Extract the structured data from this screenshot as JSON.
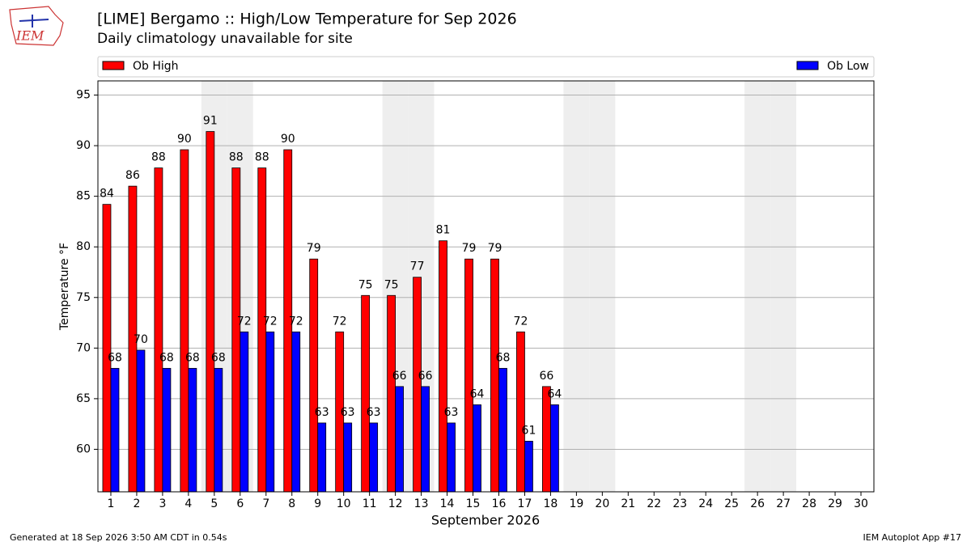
{
  "logo_text": "IEM",
  "footer_left": "Generated at 18 Sep 2026 3:50 AM CDT in 0.54s",
  "footer_right": "IEM Autoplot App #17",
  "chart_data": {
    "type": "bar",
    "title": "[LIME] Bergamo :: High/Low Temperature for Sep 2026",
    "subtitle": "Daily climatology unavailable for site",
    "x_label": "September 2026",
    "y_label": "Temperature °F",
    "categories": [
      "1",
      "2",
      "3",
      "4",
      "5",
      "6",
      "7",
      "8",
      "9",
      "10",
      "11",
      "12",
      "13",
      "14",
      "15",
      "16",
      "17",
      "18",
      "19",
      "20",
      "21",
      "22",
      "23",
      "24",
      "25",
      "26",
      "27",
      "28",
      "29",
      "30"
    ],
    "weekend_days": [
      5,
      6,
      12,
      13,
      19,
      20,
      26,
      27
    ],
    "series": [
      {
        "name": "Ob High",
        "color": "#ff0000",
        "values": [
          84.2,
          86,
          87.8,
          89.6,
          91.4,
          87.8,
          87.8,
          89.6,
          78.8,
          71.6,
          75.2,
          75.2,
          77,
          80.6,
          78.8,
          78.8,
          71.6,
          66.2,
          null,
          null,
          null,
          null,
          null,
          null,
          null,
          null,
          null,
          null,
          null,
          null
        ],
        "value_labels": [
          "84",
          "86",
          "88",
          "90",
          "91",
          "88",
          "88",
          "90",
          "79",
          "72",
          "75",
          "75",
          "77",
          "81",
          "79",
          "79",
          "72",
          "66",
          null,
          null,
          null,
          null,
          null,
          null,
          null,
          null,
          null,
          null,
          null,
          null
        ]
      },
      {
        "name": "Ob Low",
        "color": "#0000ff",
        "values": [
          68,
          69.8,
          68,
          68,
          68,
          71.6,
          71.6,
          71.6,
          62.6,
          62.6,
          62.6,
          66.2,
          66.2,
          62.6,
          64.4,
          68,
          60.8,
          64.4,
          null,
          null,
          null,
          null,
          null,
          null,
          null,
          null,
          null,
          null,
          null,
          null
        ],
        "value_labels": [
          "68",
          "70",
          "68",
          "68",
          "68",
          "72",
          "72",
          "72",
          "63",
          "63",
          "63",
          "66",
          "66",
          "63",
          "64",
          "68",
          "61",
          "64",
          null,
          null,
          null,
          null,
          null,
          null,
          null,
          null,
          null,
          null,
          null,
          null
        ]
      }
    ],
    "ylim": [
      55.8,
      96.4
    ],
    "yticks": [
      60,
      65,
      70,
      75,
      80,
      85,
      90,
      95
    ],
    "grid": true
  }
}
